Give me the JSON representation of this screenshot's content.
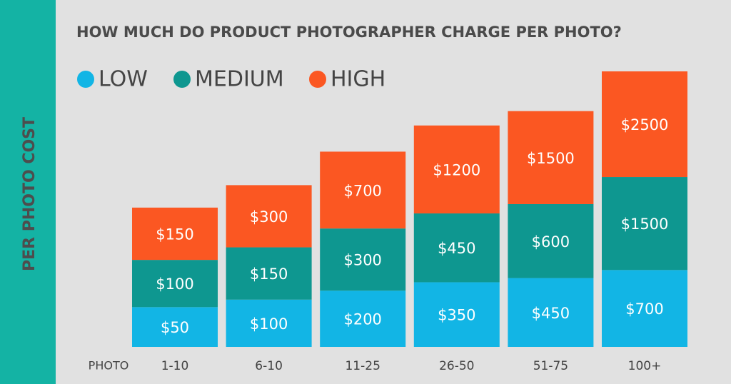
{
  "chart_data": {
    "type": "stacked_bar",
    "title": "HOW MUCH DO PRODUCT PHOTOGRAPHER CHARGE PER PHOTO?",
    "y_label": "PER PHOTO COST",
    "x_label": "PHOTO",
    "categories": [
      "1-10",
      "6-10",
      "11-25",
      "26-50",
      "51-75",
      "100+"
    ],
    "series": [
      {
        "name": "LOW",
        "color": "#12b5e5",
        "values": [
          50,
          100,
          200,
          350,
          450,
          700
        ],
        "value_labels": [
          "$50",
          "$100",
          "$200",
          "$350",
          "$450",
          "$700"
        ]
      },
      {
        "name": "MEDIUM",
        "color": "#0e9790",
        "values": [
          100,
          150,
          300,
          450,
          600,
          1500
        ],
        "value_labels": [
          "$100",
          "$150",
          "$300",
          "$450",
          "$600",
          "$1500"
        ]
      },
      {
        "name": "HIGH",
        "color": "#fb5722",
        "values": [
          150,
          300,
          700,
          1200,
          1500,
          2500
        ],
        "value_labels": [
          "$150",
          "$300",
          "$700",
          "$1200",
          "$1500",
          "$2500"
        ]
      }
    ]
  }
}
